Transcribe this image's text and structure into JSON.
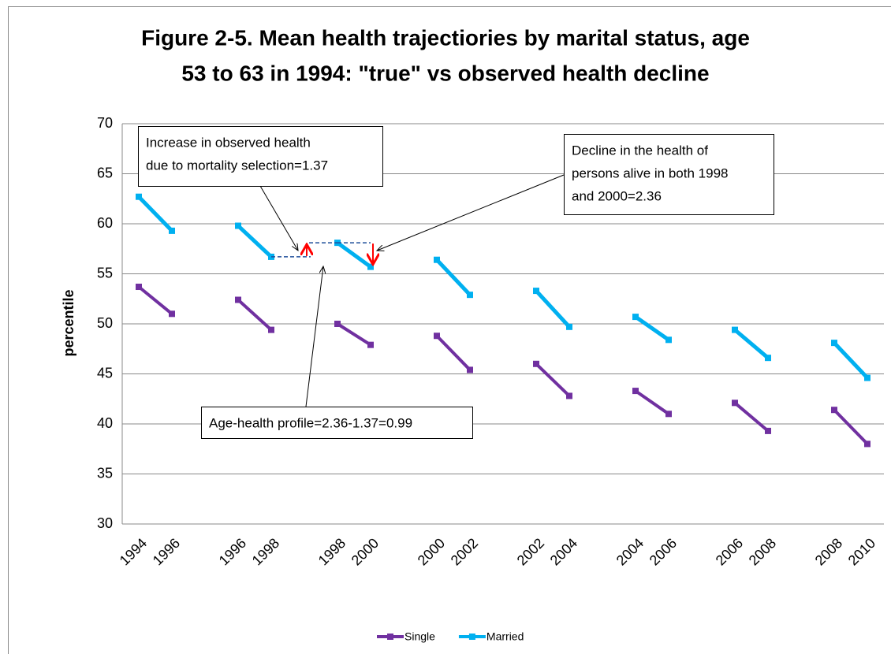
{
  "chart_data": {
    "type": "line",
    "title": [
      "Figure 2-5. Mean health trajectiories by marital status, age",
      "53 to 63 in 1994: \"true\" vs observed health decline"
    ],
    "y_label": "percentile",
    "categories": [
      "1994",
      "1996",
      null,
      "1996",
      "1998",
      null,
      "1998",
      "2000",
      null,
      "2000",
      "2002",
      null,
      "2002",
      "2004",
      null,
      "2004",
      "2006",
      null,
      "2006",
      "2008",
      null,
      "2008",
      "2010"
    ],
    "series": [
      {
        "name": "Single",
        "color": "#7030a0",
        "values": [
          53.7,
          51.0,
          null,
          52.4,
          49.4,
          null,
          50.0,
          47.9,
          null,
          48.8,
          45.4,
          null,
          46.0,
          42.8,
          null,
          43.3,
          41.0,
          null,
          42.1,
          39.3,
          null,
          41.4,
          38.0
        ]
      },
      {
        "name": "Married",
        "color": "#00b0f0",
        "values": [
          62.7,
          59.3,
          null,
          59.8,
          56.7,
          null,
          58.1,
          55.7,
          null,
          56.4,
          52.9,
          null,
          53.3,
          49.7,
          null,
          50.7,
          48.4,
          null,
          49.4,
          46.6,
          null,
          48.1,
          44.6
        ]
      }
    ],
    "trend": {
      "color": "#33ccff",
      "values": [
        null,
        59.3,
        null,
        null,
        56.7,
        null,
        null,
        55.7,
        null,
        null,
        52.9,
        null,
        null,
        49.7,
        null,
        null,
        48.4,
        null,
        null,
        46.6,
        null,
        null,
        44.6
      ]
    },
    "ylim": [
      30,
      70
    ],
    "yticks": [
      30,
      35,
      40,
      45,
      50,
      55,
      60,
      65,
      70
    ],
    "grid": true,
    "annotations": [
      [
        "Increase in observed health",
        "due to mortality selection=1.37"
      ],
      [
        "Decline in the health of",
        "persons alive in both 1998",
        "and 2000=2.36"
      ],
      [
        "Age-health profile=2.36-1.37=0.99"
      ]
    ],
    "legend": "bottom"
  }
}
